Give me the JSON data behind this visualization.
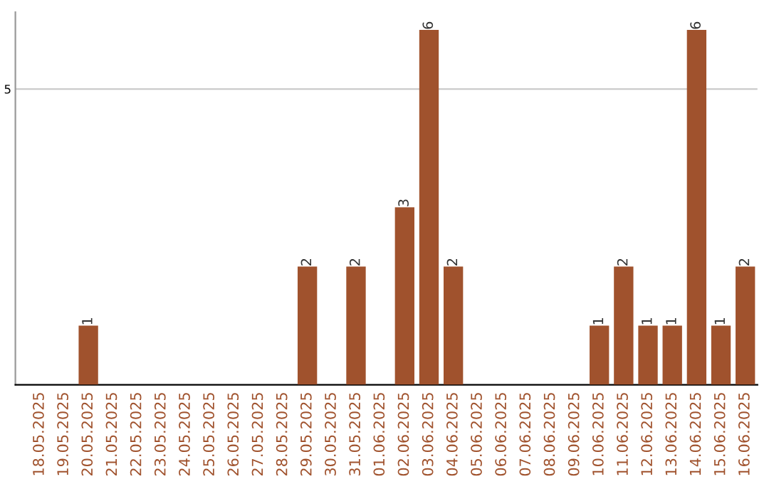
{
  "chart_data": {
    "type": "bar",
    "categories": [
      "18.05.2025",
      "19.05.2025",
      "20.05.2025",
      "21.05.2025",
      "22.05.2025",
      "23.05.2025",
      "24.05.2025",
      "25.05.2025",
      "26.05.2025",
      "27.05.2025",
      "28.05.2025",
      "29.05.2025",
      "30.05.2025",
      "31.05.2025",
      "01.06.2025",
      "02.06.2025",
      "03.06.2025",
      "04.06.2025",
      "05.06.2025",
      "06.06.2025",
      "07.06.2025",
      "08.06.2025",
      "09.06.2025",
      "10.06.2025",
      "11.06.2025",
      "12.06.2025",
      "13.06.2025",
      "14.06.2025",
      "15.06.2025",
      "16.06.2025"
    ],
    "values": [
      0,
      0,
      1,
      0,
      0,
      0,
      0,
      0,
      0,
      0,
      0,
      2,
      0,
      2,
      0,
      3,
      6,
      2,
      0,
      0,
      0,
      0,
      0,
      1,
      2,
      1,
      1,
      6,
      1,
      2
    ],
    "value_labels": [
      null,
      null,
      "1",
      null,
      null,
      null,
      null,
      null,
      null,
      null,
      null,
      "2",
      null,
      "2",
      null,
      "3",
      "6",
      "2",
      null,
      null,
      null,
      null,
      null,
      "1",
      "2",
      "1",
      "1",
      "6",
      "1",
      "2"
    ],
    "color": "#a0522d",
    "ylim": [
      0,
      6.3
    ],
    "yticks": [
      5
    ],
    "grid": "y"
  }
}
